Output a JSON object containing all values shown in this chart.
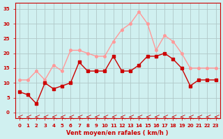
{
  "x": [
    0,
    1,
    2,
    3,
    4,
    5,
    6,
    7,
    8,
    9,
    10,
    11,
    12,
    13,
    14,
    15,
    16,
    17,
    18,
    19,
    20,
    21,
    22,
    23
  ],
  "wind_avg": [
    7,
    6,
    3,
    10,
    8,
    9,
    10,
    17,
    14,
    14,
    14,
    19,
    14,
    14,
    16,
    19,
    19,
    20,
    18,
    15,
    9,
    11,
    11,
    11
  ],
  "wind_gust": [
    11,
    11,
    14,
    11,
    16,
    14,
    21,
    21,
    20,
    19,
    19,
    24,
    28,
    30,
    34,
    30,
    21,
    26,
    24,
    20,
    15,
    15,
    15,
    15
  ],
  "avg_color": "#cc0000",
  "gust_color": "#ff9999",
  "bg_color": "#d0f0f0",
  "grid_color": "#b0c8c8",
  "xlabel": "Vent moyen/en rafales ( km/h )",
  "xlabel_color": "#cc0000",
  "ylabel_color": "#cc0000",
  "yticks": [
    0,
    5,
    10,
    15,
    20,
    25,
    30,
    35
  ],
  "ylim": [
    -2,
    37
  ],
  "xlim": [
    -0.5,
    23.5
  ]
}
